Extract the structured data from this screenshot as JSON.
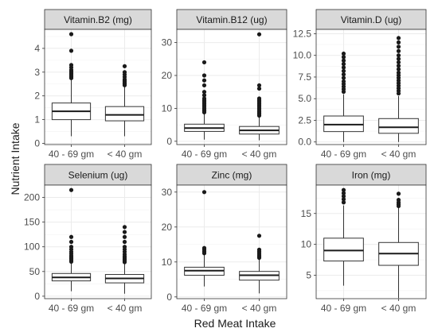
{
  "chart_data": {
    "type": "boxplot",
    "xlabel": "Red Meat Intake",
    "ylabel": "Nutrient Intake",
    "categories": [
      "40 - 69 gm",
      "< 40 gm"
    ],
    "grid": true,
    "panels": [
      {
        "title": "Vitamin.B2 (mg)",
        "ylim": [
          -0.05,
          4.8
        ],
        "yticks": [
          0,
          1,
          2,
          3,
          4
        ],
        "boxes": [
          {
            "category": "40 - 69 gm",
            "min": 0.3,
            "q1": 1.0,
            "median": 1.35,
            "q3": 1.7,
            "max": 2.7,
            "outliers": [
              2.75,
              2.8,
              2.85,
              2.9,
              2.95,
              3.0,
              3.05,
              3.1,
              3.2,
              3.3,
              3.9,
              4.6
            ]
          },
          {
            "category": "< 40 gm",
            "min": 0.3,
            "q1": 0.95,
            "median": 1.2,
            "q3": 1.55,
            "max": 2.4,
            "outliers": [
              2.45,
              2.5,
              2.55,
              2.6,
              2.65,
              2.7,
              2.8,
              2.9,
              3.0,
              3.25
            ]
          }
        ]
      },
      {
        "title": "Vitamin.B12 (ug)",
        "ylim": [
          -1,
          34
        ],
        "yticks": [
          0,
          10,
          20,
          30
        ],
        "boxes": [
          {
            "category": "40 - 69 gm",
            "min": 0.5,
            "q1": 3.0,
            "median": 4.0,
            "q3": 5.2,
            "max": 8.5,
            "outliers": [
              8.8,
              9.2,
              9.6,
              10.0,
              10.5,
              11.0,
              11.5,
              12.0,
              12.5,
              13.0,
              14.0,
              15.0,
              17.0,
              18.5,
              20.0,
              24.0
            ]
          },
          {
            "category": "< 40 gm",
            "min": 0.3,
            "q1": 2.2,
            "median": 3.3,
            "q3": 4.5,
            "max": 7.5,
            "outliers": [
              7.8,
              8.2,
              8.6,
              9.0,
              9.5,
              10.0,
              10.5,
              11.0,
              11.5,
              12.0,
              12.5,
              13.0,
              16.0,
              17.0,
              32.5
            ]
          }
        ]
      },
      {
        "title": "Vitamin.D (ug)",
        "ylim": [
          -0.3,
          13.0
        ],
        "yticks": [
          0.0,
          2.5,
          5.0,
          7.5,
          10.0,
          12.5
        ],
        "yticklabels": [
          "0.0",
          "2.5",
          "5.0",
          "7.5",
          "10.0",
          "12.5"
        ],
        "boxes": [
          {
            "category": "40 - 69 gm",
            "min": 0.0,
            "q1": 1.2,
            "median": 2.0,
            "q3": 3.0,
            "max": 5.5,
            "outliers": [
              5.8,
              6.1,
              6.4,
              6.7,
              7.0,
              7.4,
              7.8,
              8.2,
              8.6,
              9.0,
              9.4,
              9.8,
              10.2
            ]
          },
          {
            "category": "< 40 gm",
            "min": 0.0,
            "q1": 1.0,
            "median": 1.7,
            "q3": 2.7,
            "max": 5.3,
            "outliers": [
              5.6,
              5.9,
              6.2,
              6.5,
              6.8,
              7.1,
              7.4,
              7.7,
              8.0,
              8.4,
              8.8,
              9.2,
              9.6,
              10.0,
              10.5,
              11.0,
              11.5,
              12.0
            ]
          }
        ]
      },
      {
        "title": "Selenium (ug)",
        "ylim": [
          -5,
          225
        ],
        "yticks": [
          0,
          50,
          100,
          150,
          200
        ],
        "boxes": [
          {
            "category": "40 - 69 gm",
            "min": 10,
            "q1": 31,
            "median": 38,
            "q3": 46,
            "max": 68,
            "outliers": [
              70,
              73,
              76,
              79,
              82,
              86,
              90,
              95,
              100,
              110,
              120,
              215
            ]
          },
          {
            "category": "< 40 gm",
            "min": 5,
            "q1": 27,
            "median": 36,
            "q3": 44,
            "max": 67,
            "outliers": [
              69,
              72,
              75,
              78,
              81,
              85,
              90,
              95,
              100,
              110,
              120,
              130,
              140
            ]
          }
        ]
      },
      {
        "title": "Zinc (mg)",
        "ylim": [
          -0.5,
          32
        ],
        "yticks": [
          0,
          10,
          20,
          30
        ],
        "boxes": [
          {
            "category": "40 - 69 gm",
            "min": 3.0,
            "q1": 6.2,
            "median": 7.5,
            "q3": 8.5,
            "max": 12.0,
            "outliers": [
              12.5,
              13.0,
              13.5,
              14.0,
              30.0
            ]
          },
          {
            "category": "< 40 gm",
            "min": 1.0,
            "q1": 4.8,
            "median": 6.2,
            "q3": 7.3,
            "max": 10.8,
            "outliers": [
              11.2,
              11.6,
              12.0,
              12.5,
              13.0,
              13.5,
              17.5
            ]
          }
        ]
      },
      {
        "title": "Iron (mg)",
        "ylim": [
          1.2,
          19.6
        ],
        "yticks": [
          5,
          10,
          15
        ],
        "boxes": [
          {
            "category": "40 - 69 gm",
            "min": 3.3,
            "q1": 7.3,
            "median": 9.0,
            "q3": 11.0,
            "max": 16.3,
            "outliers": [
              16.8,
              17.3,
              17.8,
              18.3,
              18.8
            ]
          },
          {
            "category": "< 40 gm",
            "min": 1.3,
            "q1": 6.6,
            "median": 8.5,
            "q3": 10.3,
            "max": 15.9,
            "outliers": [
              16.2,
              16.5,
              16.8,
              17.2,
              18.2
            ]
          }
        ]
      }
    ]
  }
}
